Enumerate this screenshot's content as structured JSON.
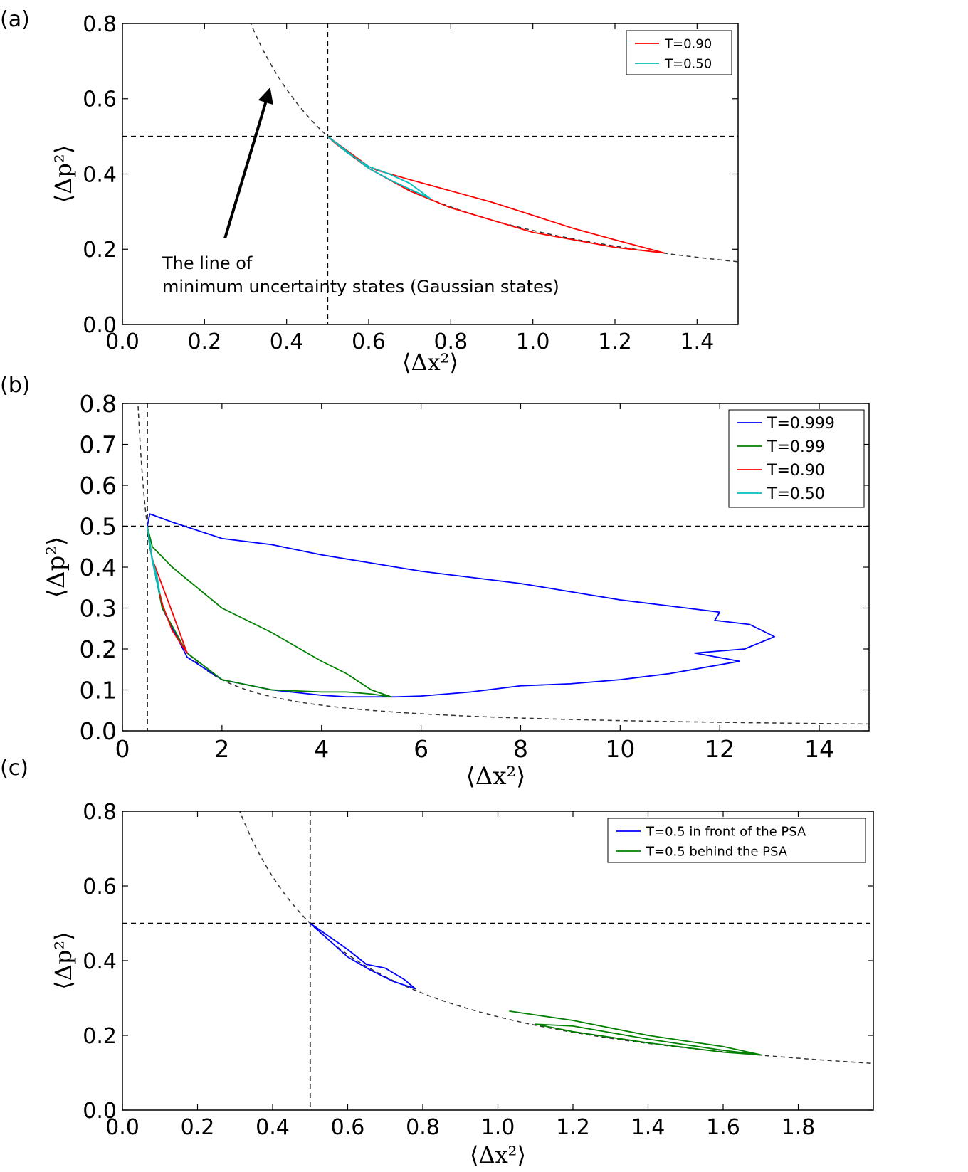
{
  "chart_data": [
    {
      "type": "line",
      "panel_label": "(a)",
      "xlabel": "⟨Δx²⟩",
      "ylabel": "⟨Δp²⟩",
      "xlim": [
        0.0,
        1.5
      ],
      "ylim": [
        0.0,
        0.8
      ],
      "xticks": [
        0.0,
        0.2,
        0.4,
        0.6,
        0.8,
        1.0,
        1.2,
        1.4
      ],
      "yticks": [
        0.0,
        0.2,
        0.4,
        0.6,
        0.8
      ],
      "tick_labels_x": [
        "0.0",
        "0.2",
        "0.4",
        "0.6",
        "0.8",
        "1.0",
        "1.2",
        "1.4"
      ],
      "tick_labels_y": [
        "0.0",
        "0.2",
        "0.4",
        "0.6",
        "0.8"
      ],
      "legend": "top-right",
      "reference_lines": {
        "vertical": 0.5,
        "horizontal": 0.5,
        "hyperbola": 0.25
      },
      "annotation": {
        "lines": [
          "The line of",
          "minimum uncertainty states (Gaussian states)"
        ],
        "arrow_from": [
          0.25,
          0.23
        ],
        "arrow_to": [
          0.36,
          0.63
        ]
      },
      "series": [
        {
          "name": "T=0.90",
          "color": "#ff0000",
          "x": [
            0.5,
            0.6,
            0.62,
            0.7,
            0.8,
            0.9,
            1.0,
            1.1,
            1.2,
            1.32,
            1.2,
            1.0,
            0.8,
            0.7,
            0.6,
            0.52,
            0.5
          ],
          "y": [
            0.5,
            0.42,
            0.41,
            0.385,
            0.355,
            0.325,
            0.29,
            0.255,
            0.225,
            0.19,
            0.205,
            0.245,
            0.31,
            0.355,
            0.415,
            0.48,
            0.5
          ]
        },
        {
          "name": "T=0.50",
          "color": "#00bfbf",
          "x": [
            0.5,
            0.55,
            0.6,
            0.65,
            0.7,
            0.75,
            0.72,
            0.66,
            0.6,
            0.53,
            0.5
          ],
          "y": [
            0.5,
            0.455,
            0.42,
            0.4,
            0.375,
            0.335,
            0.35,
            0.38,
            0.415,
            0.475,
            0.5
          ]
        }
      ]
    },
    {
      "type": "line",
      "panel_label": "(b)",
      "xlabel": "⟨Δx²⟩",
      "ylabel": "⟨Δp²⟩",
      "xlim": [
        0,
        15
      ],
      "ylim": [
        0.0,
        0.8
      ],
      "xticks": [
        0,
        2,
        4,
        6,
        8,
        10,
        12,
        14
      ],
      "yticks": [
        0.0,
        0.1,
        0.2,
        0.3,
        0.4,
        0.5,
        0.6,
        0.7,
        0.8
      ],
      "tick_labels_x": [
        "0",
        "2",
        "4",
        "6",
        "8",
        "10",
        "12",
        "14"
      ],
      "tick_labels_y": [
        "0.0",
        "0.1",
        "0.2",
        "0.3",
        "0.4",
        "0.5",
        "0.6",
        "0.7",
        "0.8"
      ],
      "legend": "top-right",
      "reference_lines": {
        "vertical": 0.5,
        "horizontal": 0.5,
        "hyperbola": 0.25
      },
      "series": [
        {
          "name": "T=0.999",
          "color": "#0000ff",
          "x": [
            0.5,
            0.55,
            1.0,
            2.0,
            3.0,
            4.0,
            5.0,
            6.0,
            7.0,
            8.0,
            9.0,
            10.0,
            11.0,
            12.0,
            11.9,
            12.6,
            13.1,
            12.5,
            11.5,
            12.4,
            11.0,
            10.0,
            9.0,
            8.0,
            7.0,
            6.0,
            5.5,
            5.0,
            4.5,
            4.0,
            3.0,
            2.0,
            1.3,
            0.8,
            0.55,
            0.5
          ],
          "y": [
            0.5,
            0.53,
            0.51,
            0.47,
            0.455,
            0.43,
            0.41,
            0.39,
            0.375,
            0.36,
            0.34,
            0.32,
            0.305,
            0.29,
            0.27,
            0.26,
            0.23,
            0.2,
            0.19,
            0.17,
            0.14,
            0.125,
            0.115,
            0.11,
            0.095,
            0.085,
            0.083,
            0.083,
            0.083,
            0.087,
            0.1,
            0.125,
            0.18,
            0.3,
            0.45,
            0.5
          ]
        },
        {
          "name": "T=0.99",
          "color": "#008000",
          "x": [
            0.5,
            0.6,
            1.0,
            1.5,
            2.0,
            3.0,
            4.0,
            4.5,
            5.0,
            5.4,
            5.0,
            4.5,
            4.0,
            3.0,
            2.0,
            1.3,
            0.8,
            0.55,
            0.5
          ],
          "y": [
            0.5,
            0.45,
            0.4,
            0.35,
            0.3,
            0.24,
            0.17,
            0.14,
            0.1,
            0.083,
            0.09,
            0.095,
            0.095,
            0.1,
            0.125,
            0.19,
            0.3,
            0.45,
            0.5
          ]
        },
        {
          "name": "T=0.90",
          "color": "#ff0000",
          "x": [
            0.5,
            0.6,
            0.8,
            1.0,
            1.3,
            1.0,
            0.8,
            0.6,
            0.5
          ],
          "y": [
            0.5,
            0.42,
            0.355,
            0.29,
            0.19,
            0.245,
            0.31,
            0.415,
            0.5
          ]
        },
        {
          "name": "T=0.50",
          "color": "#00bfbf",
          "x": [
            0.5,
            0.6,
            0.7,
            0.75,
            0.72,
            0.6,
            0.5
          ],
          "y": [
            0.5,
            0.42,
            0.375,
            0.335,
            0.35,
            0.415,
            0.5
          ]
        }
      ]
    },
    {
      "type": "line",
      "panel_label": "(c)",
      "xlabel": "⟨Δx²⟩",
      "ylabel": "⟨Δp²⟩",
      "xlim": [
        0.0,
        2.0
      ],
      "ylim": [
        0.0,
        0.8
      ],
      "xticks": [
        0.0,
        0.2,
        0.4,
        0.6,
        0.8,
        1.0,
        1.2,
        1.4,
        1.6,
        1.8
      ],
      "yticks": [
        0.0,
        0.2,
        0.4,
        0.6,
        0.8
      ],
      "tick_labels_x": [
        "0.0",
        "0.2",
        "0.4",
        "0.6",
        "0.8",
        "1.0",
        "1.2",
        "1.4",
        "1.6",
        "1.8"
      ],
      "tick_labels_y": [
        "0.0",
        "0.2",
        "0.4",
        "0.6",
        "0.8"
      ],
      "legend": "top-right",
      "reference_lines": {
        "vertical": 0.5,
        "horizontal": 0.5,
        "hyperbola": 0.25
      },
      "series": [
        {
          "name": "T=0.5 in front of the PSA",
          "color": "#0000ff",
          "x": [
            0.5,
            0.6,
            0.65,
            0.7,
            0.75,
            0.78,
            0.72,
            0.66,
            0.6,
            0.5
          ],
          "y": [
            0.5,
            0.43,
            0.39,
            0.38,
            0.35,
            0.325,
            0.345,
            0.375,
            0.41,
            0.5
          ]
        },
        {
          "name": "T=0.5 behind the PSA",
          "color": "#008000",
          "x": [
            1.03,
            1.2,
            1.4,
            1.6,
            1.7,
            1.6,
            1.4,
            1.2,
            1.1,
            1.2,
            1.4,
            1.6,
            1.7
          ],
          "y": [
            0.265,
            0.24,
            0.2,
            0.17,
            0.148,
            0.155,
            0.18,
            0.21,
            0.23,
            0.225,
            0.19,
            0.16,
            0.148
          ]
        }
      ]
    }
  ]
}
